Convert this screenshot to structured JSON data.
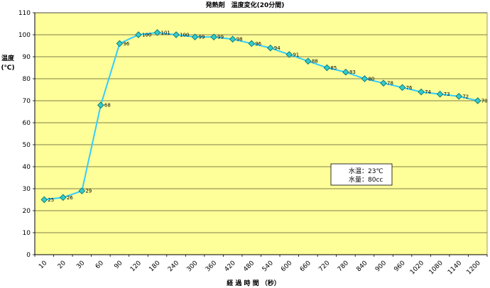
{
  "chart_data": {
    "type": "line",
    "title": "発熱剤　温度変化(20分間)",
    "xlabel": "経 過 時 間 （秒）",
    "ylabel_line1": "温度",
    "ylabel_line2": "(℃)",
    "categories": [
      "10",
      "20",
      "30",
      "60",
      "90",
      "120",
      "180",
      "240",
      "300",
      "360",
      "420",
      "480",
      "540",
      "600",
      "660",
      "720",
      "780",
      "840",
      "900",
      "960",
      "1020",
      "1080",
      "1140",
      "1200"
    ],
    "series": [
      {
        "values": [
          25,
          26,
          29,
          68,
          96,
          100,
          101,
          100,
          99,
          99,
          98,
          96,
          94,
          91,
          88,
          85,
          83,
          80,
          78,
          76,
          74,
          73,
          72,
          70
        ]
      }
    ],
    "ylim": [
      0,
      110
    ],
    "yticks": [
      0,
      10,
      20,
      30,
      40,
      50,
      60,
      70,
      80,
      90,
      100,
      110
    ],
    "grid": true,
    "annotation": {
      "line1": "水温：23℃",
      "line2": "水量：80cc"
    },
    "colors": {
      "plot_bg": "#ffff99",
      "line": "#33ccff",
      "marker_fill": "#33cccc",
      "marker_edge": "#006666",
      "grid": "#000000"
    }
  }
}
